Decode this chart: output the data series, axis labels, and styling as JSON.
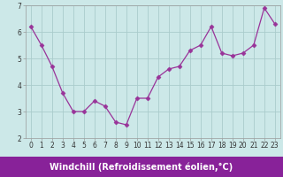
{
  "x": [
    0,
    1,
    2,
    3,
    4,
    5,
    6,
    7,
    8,
    9,
    10,
    11,
    12,
    13,
    14,
    15,
    16,
    17,
    18,
    19,
    20,
    21,
    22,
    23
  ],
  "y": [
    6.2,
    5.5,
    4.7,
    3.7,
    3.0,
    3.0,
    3.4,
    3.2,
    2.6,
    2.5,
    3.5,
    3.5,
    4.3,
    4.6,
    4.7,
    5.3,
    5.5,
    6.2,
    5.2,
    5.1,
    5.2,
    5.5,
    6.9,
    6.3
  ],
  "line_color": "#993399",
  "marker": "D",
  "marker_size": 2.5,
  "bg_color": "#cce8e8",
  "grid_color": "#aacccc",
  "xlabel": "Windchill (Refroidissement éolien,°C)",
  "xlabel_color": "#ffffff",
  "xlabel_bg": "#882299",
  "ylim": [
    2,
    7
  ],
  "xlim": [
    -0.5,
    23.5
  ],
  "yticks": [
    2,
    3,
    4,
    5,
    6,
    7
  ],
  "xticks": [
    0,
    1,
    2,
    3,
    4,
    5,
    6,
    7,
    8,
    9,
    10,
    11,
    12,
    13,
    14,
    15,
    16,
    17,
    18,
    19,
    20,
    21,
    22,
    23
  ],
  "tick_labelsize": 5.5,
  "xlabel_fontsize": 7.0,
  "spine_color": "#999999"
}
